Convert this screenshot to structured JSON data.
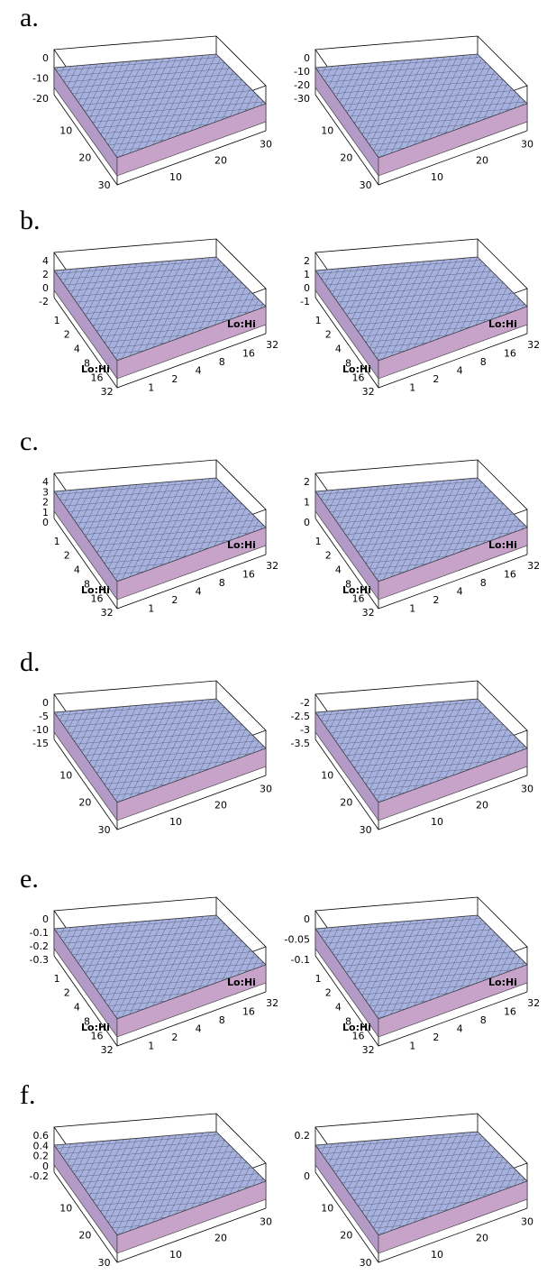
{
  "panels": [
    {
      "label": "a.",
      "plots": [
        {
          "z_ticks": [
            "0",
            "-10",
            "-20"
          ],
          "x_ticks": [
            "10",
            "20",
            "30"
          ],
          "y_ticks": [
            "10",
            "20",
            "30"
          ]
        },
        {
          "z_ticks": [
            "0",
            "-10",
            "-20",
            "-30"
          ],
          "x_ticks": [
            "10",
            "20",
            "30"
          ],
          "y_ticks": [
            "10",
            "20",
            "30"
          ]
        }
      ]
    },
    {
      "label": "b.",
      "plots": [
        {
          "z_ticks": [
            "4",
            "2",
            "0",
            "-2"
          ],
          "x_ticks": [
            "1",
            "2",
            "4",
            "8",
            "16",
            "32"
          ],
          "y_ticks": [
            "1",
            "2",
            "4",
            "8",
            "16",
            "32"
          ],
          "x_label": "Lo:Hi",
          "y_label": "Lo:Hi"
        },
        {
          "z_ticks": [
            "2",
            "1",
            "0",
            "-1"
          ],
          "x_ticks": [
            "1",
            "2",
            "4",
            "8",
            "16",
            "32"
          ],
          "y_ticks": [
            "1",
            "2",
            "4",
            "8",
            "16",
            "32"
          ],
          "x_label": "Lo:Hi",
          "y_label": "Lo:Hi"
        }
      ]
    },
    {
      "label": "c.",
      "plots": [
        {
          "z_ticks": [
            "4",
            "3",
            "2",
            "1",
            "0"
          ],
          "x_ticks": [
            "1",
            "2",
            "4",
            "8",
            "16",
            "32"
          ],
          "y_ticks": [
            "1",
            "2",
            "4",
            "8",
            "16",
            "32"
          ],
          "x_label": "Lo:Hi",
          "y_label": "Lo:Hi"
        },
        {
          "z_ticks": [
            "2",
            "1",
            "0"
          ],
          "x_ticks": [
            "1",
            "2",
            "4",
            "8",
            "16",
            "32"
          ],
          "y_ticks": [
            "1",
            "2",
            "4",
            "8",
            "16",
            "32"
          ],
          "x_label": "Lo:Hi",
          "y_label": "Lo:Hi"
        }
      ]
    },
    {
      "label": "d.",
      "plots": [
        {
          "z_ticks": [
            "0",
            "-5",
            "-10",
            "-15"
          ],
          "x_ticks": [
            "10",
            "20",
            "30"
          ],
          "y_ticks": [
            "10",
            "20",
            "30"
          ]
        },
        {
          "z_ticks": [
            "-2",
            "-2.5",
            "-3",
            "-3.5"
          ],
          "x_ticks": [
            "10",
            "20",
            "30"
          ],
          "y_ticks": [
            "10",
            "20",
            "30"
          ]
        }
      ]
    },
    {
      "label": "e.",
      "plots": [
        {
          "z_ticks": [
            "0",
            "-0.1",
            "-0.2",
            "-0.3"
          ],
          "x_ticks": [
            "1",
            "2",
            "4",
            "8",
            "16",
            "32"
          ],
          "y_ticks": [
            "1",
            "2",
            "4",
            "8",
            "16",
            "32"
          ],
          "x_label": "Lo:Hi",
          "y_label": "Lo:Hi"
        },
        {
          "z_ticks": [
            "0",
            "-0.05",
            "-0.1"
          ],
          "x_ticks": [
            "1",
            "2",
            "4",
            "8",
            "16",
            "32"
          ],
          "y_ticks": [
            "1",
            "2",
            "4",
            "8",
            "16",
            "32"
          ],
          "x_label": "Lo:Hi",
          "y_label": "Lo:Hi"
        }
      ]
    },
    {
      "label": "f.",
      "plots": [
        {
          "z_ticks": [
            "0.6",
            "0.4",
            "0.2",
            "0",
            "-0.2"
          ],
          "x_ticks": [
            "10",
            "20",
            "30"
          ],
          "y_ticks": [
            "10",
            "20",
            "30"
          ]
        },
        {
          "z_ticks": [
            "0.2",
            "0"
          ],
          "x_ticks": [
            "10",
            "20",
            "30"
          ],
          "y_ticks": [
            "10",
            "20",
            "30"
          ]
        }
      ]
    }
  ]
}
